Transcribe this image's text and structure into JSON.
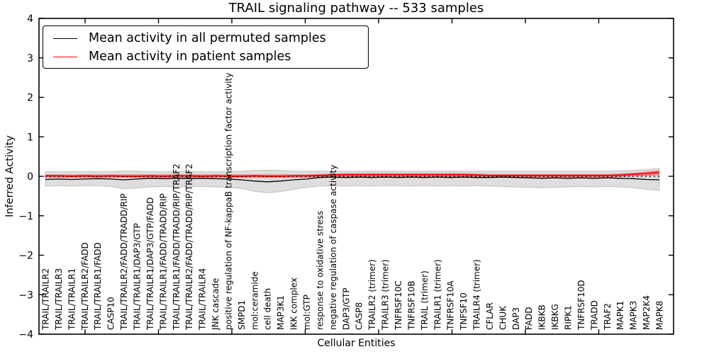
{
  "chart_data": {
    "type": "line",
    "title": "TRAIL signaling pathway -- 533 samples",
    "xlabel": "Cellular Entities",
    "ylabel": "Inferred Activity",
    "ylim": [
      -4,
      4
    ],
    "yticks": [
      4,
      3,
      2,
      1,
      0,
      -1,
      -2,
      -3,
      -4
    ],
    "ytick_labels": [
      "4",
      "3",
      "2",
      "1",
      "0",
      "−1",
      "−2",
      "−3",
      "−4"
    ],
    "grid": false,
    "legend_position": "upper left",
    "zero_line": {
      "y": 0,
      "style": "dotted",
      "color": "#000000"
    },
    "categories": [
      "TRAIL/TRAILR2",
      "TRAIL/TRAILR3",
      "TRAIL/TRAILR1",
      "TRAIL/TRAILR2/FADD",
      "TRAIL/TRAILR1/FADD",
      "CASP10",
      "TRAIL/TRAILR2/FADD/TRADD/RIP",
      "TRAIL/TRAILR1/DAP3/GTP",
      "TRAIL/TRAILR1/DAP3/GTP/FADD",
      "TRAIL/TRAILR1/FADD/TRADD/RIP",
      "TRAIL/TRAILR1/FADD/TRADD/RIP/TRAF2",
      "TRAIL/TRAILR2/FADD/TRADD/RIP/TRAF2",
      "TRAIL/TRAILR4",
      "JNK cascade",
      "positive regulation of NF-kappaB transcription factor activity",
      "SMPD1",
      "mol:ceramide",
      "cell death",
      "MAP3K1",
      "IKK complex",
      "mol:GTP",
      "response to oxidative stress",
      "negative regulation of caspase activity",
      "DAP3/GTP",
      "CASP8",
      "TRAILR2 (trimer)",
      "TRAILR3 (trimer)",
      "TNFRSF10C",
      "TNFRSF10B",
      "TRAIL (trimer)",
      "TRAILR1 (trimer)",
      "TNFRSF10A",
      "TNFSF10",
      "TRAILR4 (trimer)",
      "CFLAR",
      "CHUK",
      "DAP3",
      "FADD",
      "IKBKB",
      "IKBKG",
      "RIPK1",
      "TNFRSF10D",
      "TRADD",
      "TRAF2",
      "MAPK1",
      "MAPK3",
      "MAP2K4",
      "MAPK8"
    ],
    "series": [
      {
        "name": "Mean activity in all permuted samples",
        "color": "#000000",
        "values": [
          -0.08,
          -0.07,
          -0.08,
          -0.07,
          -0.06,
          -0.07,
          -0.09,
          -0.07,
          -0.05,
          -0.06,
          -0.05,
          -0.06,
          -0.05,
          -0.06,
          -0.07,
          -0.09,
          -0.12,
          -0.14,
          -0.12,
          -0.09,
          -0.07,
          -0.03,
          -0.02,
          -0.03,
          -0.02,
          -0.03,
          -0.02,
          -0.03,
          -0.02,
          -0.03,
          -0.02,
          -0.03,
          -0.02,
          -0.03,
          -0.03,
          -0.02,
          -0.03,
          -0.04,
          -0.05,
          -0.04,
          -0.05,
          -0.04,
          -0.05,
          -0.04,
          -0.05,
          -0.06,
          -0.08,
          -0.09
        ]
      },
      {
        "name": "Mean activity in patient samples",
        "color": "#ff0000",
        "values": [
          0.01,
          0.01,
          0.0,
          0.01,
          0.0,
          0.01,
          0.0,
          0.0,
          0.01,
          0.0,
          0.01,
          0.01,
          0.0,
          0.01,
          0.0,
          0.0,
          0.01,
          0.0,
          0.0,
          0.01,
          0.01,
          0.02,
          0.03,
          0.04,
          0.04,
          0.04,
          0.04,
          0.04,
          0.04,
          0.04,
          0.04,
          0.04,
          0.04,
          0.03,
          0.02,
          0.02,
          0.02,
          0.02,
          0.02,
          0.02,
          0.02,
          0.02,
          0.02,
          0.02,
          0.03,
          0.05,
          0.07,
          0.1
        ]
      }
    ],
    "bands": [
      {
        "name": "permuted samples spread",
        "fill": "rgba(0,0,0,0.13)",
        "edge": "rgba(0,0,0,0.18)",
        "upper": [
          0.12,
          0.12,
          0.12,
          0.12,
          0.12,
          0.12,
          0.14,
          0.13,
          0.12,
          0.12,
          0.12,
          0.12,
          0.12,
          0.12,
          0.12,
          0.13,
          0.15,
          0.16,
          0.15,
          0.13,
          0.13,
          0.13,
          0.13,
          0.13,
          0.13,
          0.13,
          0.13,
          0.13,
          0.13,
          0.13,
          0.13,
          0.13,
          0.13,
          0.13,
          0.13,
          0.13,
          0.13,
          0.13,
          0.13,
          0.13,
          0.13,
          0.13,
          0.13,
          0.13,
          0.14,
          0.15,
          0.17,
          0.2
        ],
        "lower": [
          -0.25,
          -0.24,
          -0.25,
          -0.24,
          -0.24,
          -0.26,
          -0.32,
          -0.3,
          -0.27,
          -0.26,
          -0.27,
          -0.26,
          -0.26,
          -0.27,
          -0.28,
          -0.31,
          -0.38,
          -0.42,
          -0.39,
          -0.33,
          -0.28,
          -0.25,
          -0.24,
          -0.25,
          -0.24,
          -0.25,
          -0.24,
          -0.24,
          -0.25,
          -0.24,
          -0.25,
          -0.24,
          -0.25,
          -0.24,
          -0.25,
          -0.26,
          -0.27,
          -0.28,
          -0.29,
          -0.28,
          -0.27,
          -0.26,
          -0.27,
          -0.26,
          -0.27,
          -0.29,
          -0.33,
          -0.36
        ]
      },
      {
        "name": "patient samples spread",
        "fill": "rgba(255,0,0,0.4)",
        "edge": "none",
        "upper": [
          0.05,
          0.05,
          0.05,
          0.05,
          0.05,
          0.05,
          0.05,
          0.05,
          0.05,
          0.05,
          0.05,
          0.05,
          0.05,
          0.05,
          0.05,
          0.05,
          0.05,
          0.05,
          0.05,
          0.05,
          0.05,
          0.06,
          0.07,
          0.08,
          0.08,
          0.08,
          0.08,
          0.08,
          0.08,
          0.08,
          0.08,
          0.08,
          0.08,
          0.07,
          0.06,
          0.06,
          0.06,
          0.06,
          0.06,
          0.06,
          0.06,
          0.06,
          0.06,
          0.06,
          0.07,
          0.09,
          0.12,
          0.15
        ],
        "lower": [
          -0.04,
          -0.04,
          -0.04,
          -0.04,
          -0.04,
          -0.04,
          -0.04,
          -0.04,
          -0.04,
          -0.04,
          -0.04,
          -0.04,
          -0.04,
          -0.04,
          -0.04,
          -0.04,
          -0.04,
          -0.04,
          -0.04,
          -0.04,
          -0.04,
          -0.04,
          -0.04,
          -0.04,
          -0.04,
          -0.04,
          -0.04,
          -0.04,
          -0.04,
          -0.04,
          -0.04,
          -0.04,
          -0.04,
          -0.04,
          -0.04,
          -0.04,
          -0.04,
          -0.04,
          -0.04,
          -0.04,
          -0.04,
          -0.04,
          -0.04,
          -0.04,
          -0.02,
          0.0,
          0.01,
          0.03
        ]
      }
    ]
  }
}
